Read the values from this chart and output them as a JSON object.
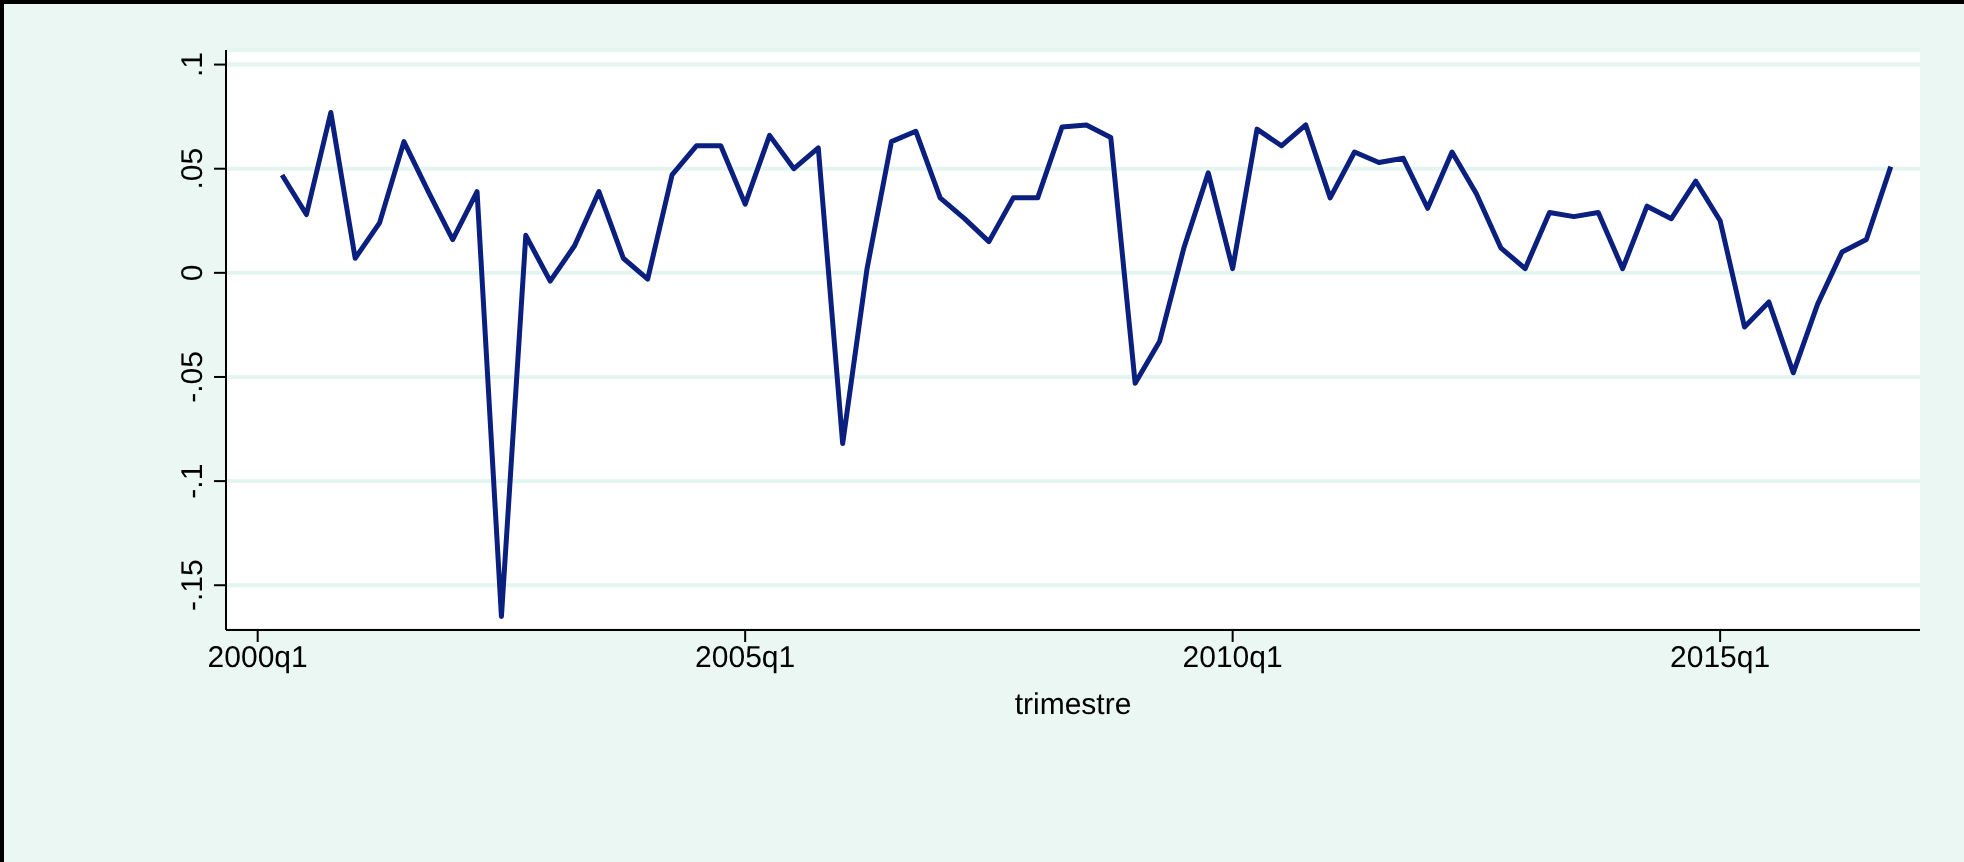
{
  "chart_data": {
    "type": "line",
    "xlabel": "trimestre",
    "categories": [
      "2000q1",
      null,
      null,
      null,
      null,
      null,
      null,
      null,
      null,
      null,
      null,
      null,
      null,
      null,
      null,
      null,
      null,
      null,
      null,
      null,
      "2005q1",
      null,
      null,
      null,
      null,
      null,
      null,
      null,
      null,
      null,
      null,
      null,
      null,
      null,
      null,
      null,
      null,
      null,
      null,
      null,
      "2010q1",
      null,
      null,
      null,
      null,
      null,
      null,
      null,
      null,
      null,
      null,
      null,
      null,
      null,
      null,
      null,
      null,
      null,
      null,
      null,
      "2015q1",
      null,
      null,
      null,
      null,
      null,
      null,
      null
    ],
    "series": [
      {
        "color": "#0b1f7f",
        "values": [
          null,
          0.047,
          0.028,
          0.077,
          0.007,
          0.024,
          0.063,
          0.039,
          0.016,
          0.039,
          -0.165,
          0.018,
          -0.004,
          0.013,
          0.039,
          0.007,
          -0.003,
          0.047,
          0.061,
          0.061,
          0.033,
          0.066,
          0.05,
          0.06,
          -0.082,
          0.002,
          0.063,
          0.068,
          0.036,
          0.026,
          0.015,
          0.036,
          0.036,
          0.07,
          0.071,
          0.065,
          -0.053,
          -0.033,
          0.012,
          0.048,
          0.002,
          0.069,
          0.061,
          0.071,
          0.036,
          0.058,
          0.053,
          0.055,
          0.031,
          0.058,
          0.038,
          0.012,
          0.002,
          0.029,
          0.027,
          0.029,
          0.002,
          0.032,
          0.026,
          0.044,
          0.025,
          -0.026,
          -0.014,
          -0.048,
          -0.015,
          0.01,
          0.016,
          0.051
        ]
      }
    ],
    "ylim": [
      -0.1715,
      0.107
    ],
    "yticks": [
      {
        "value": -0.15,
        "label": "-.15"
      },
      {
        "value": -0.1,
        "label": "-.1"
      },
      {
        "value": -0.05,
        "label": "-.05"
      },
      {
        "value": 0,
        "label": "0"
      },
      {
        "value": 0.05,
        "label": ".05"
      },
      {
        "value": 0.1,
        "label": ".1"
      }
    ],
    "grid": "y",
    "marker": "none",
    "line_style": "solid",
    "legend": false
  }
}
